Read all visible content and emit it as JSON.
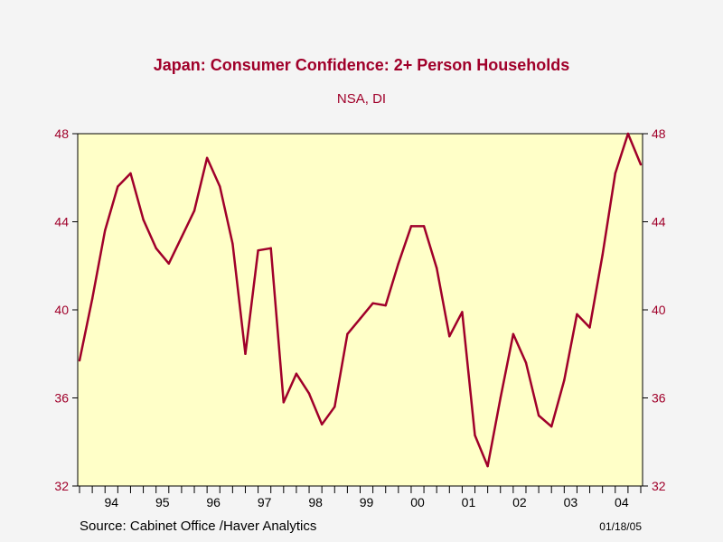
{
  "chart_data": {
    "type": "line",
    "title": "Japan: Consumer Confidence: 2+ Person Households",
    "subtitle": "NSA, DI",
    "xlabel": "",
    "ylabel": "",
    "ylim": [
      32,
      48
    ],
    "yticks": [
      "32",
      "36",
      "40",
      "44",
      "48"
    ],
    "grid": false,
    "categories": [
      "94",
      "95",
      "96",
      "97",
      "98",
      "99",
      "00",
      "01",
      "02",
      "03",
      "04"
    ],
    "series": [
      {
        "name": "",
        "color": "#a0002a",
        "x": [
          "1993Q4",
          "1994Q1",
          "1994Q2",
          "1994Q3",
          "1994Q4",
          "1995Q1",
          "1995Q2",
          "1995Q3",
          "1995Q4",
          "1996Q1",
          "1996Q2",
          "1996Q3",
          "1996Q4",
          "1997Q1",
          "1997Q2",
          "1997Q3",
          "1997Q4",
          "1998Q1",
          "1998Q2",
          "1998Q3",
          "1998Q4",
          "1999Q1",
          "1999Q2",
          "1999Q3",
          "1999Q4",
          "2000Q1",
          "2000Q2",
          "2000Q3",
          "2000Q4",
          "2001Q1",
          "2001Q2",
          "2001Q3",
          "2001Q4",
          "2002Q1",
          "2002Q2",
          "2002Q3",
          "2002Q4",
          "2003Q1",
          "2003Q2",
          "2003Q3",
          "2003Q4",
          "2004Q1",
          "2004Q2",
          "2004Q3",
          "2004Q4"
        ],
        "values": [
          37.7,
          40.5,
          43.6,
          45.6,
          46.2,
          44.1,
          42.8,
          42.1,
          43.3,
          44.5,
          46.9,
          45.6,
          43.0,
          38.0,
          42.7,
          42.8,
          35.8,
          37.1,
          36.2,
          34.8,
          35.6,
          38.9,
          39.6,
          40.3,
          40.2,
          42.1,
          43.8,
          43.8,
          41.9,
          38.8,
          39.9,
          34.3,
          32.9,
          36.0,
          38.9,
          37.6,
          35.2,
          34.7,
          36.8,
          39.8,
          39.2,
          42.5,
          46.2,
          48.0,
          46.6
        ]
      }
    ]
  },
  "footer": {
    "source": "Source:  Cabinet Office /Haver Analytics",
    "date": "01/18/05"
  }
}
